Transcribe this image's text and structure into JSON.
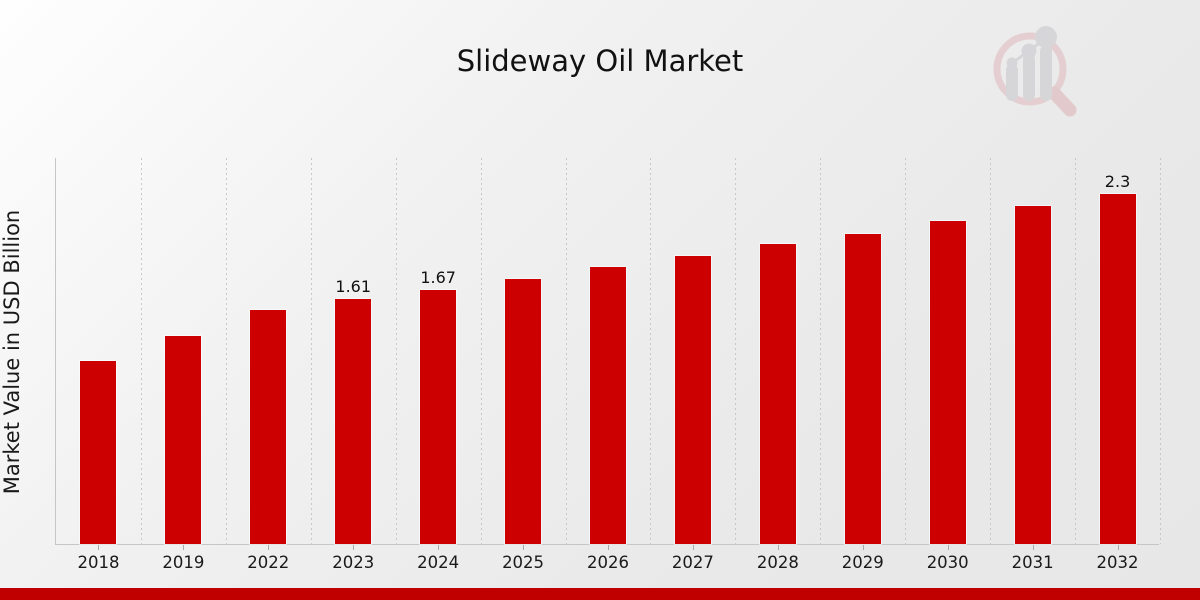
{
  "header": {
    "title": "Slideway Oil Market"
  },
  "logo": {
    "name": "market-research-future-watermark"
  },
  "footer": {
    "accent_color": "#C00000"
  },
  "chart_data": {
    "type": "bar",
    "title": "Slideway Oil Market",
    "categories": [
      "2018",
      "2019",
      "2022",
      "2023",
      "2024",
      "2025",
      "2026",
      "2027",
      "2028",
      "2029",
      "2030",
      "2031",
      "2032"
    ],
    "values": [
      1.2,
      1.37,
      1.54,
      1.61,
      1.67,
      1.74,
      1.82,
      1.89,
      1.97,
      2.04,
      2.12,
      2.22,
      2.3
    ],
    "bar_labels": [
      "",
      "",
      "",
      "1.61",
      "1.67",
      "",
      "",
      "",
      "",
      "",
      "",
      "",
      "2.3"
    ],
    "xlabel": "",
    "ylabel": "Market Value in USD Billion",
    "ylim": [
      0,
      2.543
    ],
    "grid": "vertical-dashed-category-boundaries",
    "legend": "none",
    "bar_color": "#CC0000"
  }
}
